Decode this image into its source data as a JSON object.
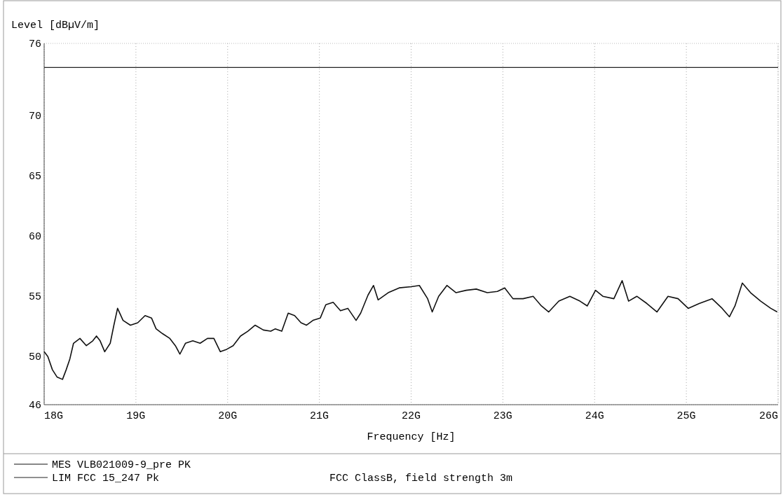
{
  "chart_data": {
    "type": "line",
    "ylabel": "Level [dBµV/m]",
    "xlabel": "Frequency [Hz]",
    "xlim": [
      18,
      26
    ],
    "xticks": [
      {
        "value": 18,
        "label": "18G"
      },
      {
        "value": 19,
        "label": "19G"
      },
      {
        "value": 20,
        "label": "20G"
      },
      {
        "value": 21,
        "label": "21G"
      },
      {
        "value": 22,
        "label": "22G"
      },
      {
        "value": 23,
        "label": "23G"
      },
      {
        "value": 24,
        "label": "24G"
      },
      {
        "value": 25,
        "label": "25G"
      },
      {
        "value": 26,
        "label": "26G"
      }
    ],
    "ylim": [
      46,
      76
    ],
    "yticks": [
      46,
      50,
      55,
      60,
      65,
      70,
      76
    ],
    "grid": "x",
    "legend": "bottom",
    "annotations": [
      "FCC ClassB, field strength 3m"
    ],
    "series": [
      {
        "name": "MES VLB021009-9_pre PK",
        "color": "#111111",
        "x": [
          18,
          18.04,
          18.09,
          18.14,
          18.2,
          18.24,
          18.28,
          18.32,
          18.39,
          18.46,
          18.53,
          18.57,
          18.61,
          18.66,
          18.72,
          18.76,
          18.8,
          18.86,
          18.94,
          19.02,
          19.1,
          19.17,
          19.22,
          19.29,
          19.37,
          19.43,
          19.48,
          19.54,
          19.62,
          19.7,
          19.78,
          19.85,
          19.92,
          19.99,
          20.06,
          20.14,
          20.22,
          20.3,
          20.39,
          20.47,
          20.52,
          20.59,
          20.66,
          20.73,
          20.8,
          20.86,
          20.93,
          21.01,
          21.07,
          21.15,
          21.23,
          21.31,
          21.4,
          21.45,
          21.53,
          21.59,
          21.64,
          21.75,
          21.87,
          22,
          22.09,
          22.18,
          22.23,
          22.3,
          22.39,
          22.49,
          22.6,
          22.71,
          22.83,
          22.94,
          23.02,
          23.11,
          23.22,
          23.33,
          23.42,
          23.5,
          23.61,
          23.73,
          23.84,
          23.92,
          24.01,
          24.09,
          24.21,
          24.3,
          24.37,
          24.46,
          24.57,
          24.68,
          24.8,
          24.91,
          25.02,
          25.14,
          25.28,
          25.39,
          25.47,
          25.53,
          25.61,
          25.7,
          25.81,
          25.92,
          25.99
        ],
        "values": [
          50.4,
          50,
          48.9,
          48.3,
          48.1,
          48.9,
          49.8,
          51.1,
          51.5,
          50.9,
          51.3,
          51.7,
          51.3,
          50.4,
          51.1,
          52.6,
          54,
          53,
          52.6,
          52.8,
          53.4,
          53.2,
          52.3,
          51.9,
          51.5,
          50.9,
          50.2,
          51.1,
          51.3,
          51.1,
          51.5,
          51.5,
          50.4,
          50.6,
          50.9,
          51.7,
          52.1,
          52.6,
          52.2,
          52.1,
          52.3,
          52.1,
          53.6,
          53.4,
          52.8,
          52.6,
          53,
          53.2,
          54.3,
          54.5,
          53.8,
          54,
          53,
          53.6,
          55.1,
          55.9,
          54.7,
          55.3,
          55.7,
          55.8,
          55.9,
          54.8,
          53.7,
          55,
          55.9,
          55.3,
          55.5,
          55.6,
          55.3,
          55.4,
          55.7,
          54.8,
          54.8,
          55,
          54.2,
          53.7,
          54.6,
          55,
          54.6,
          54.2,
          55.5,
          55,
          54.8,
          56.3,
          54.6,
          55,
          54.4,
          53.7,
          55,
          54.8,
          54,
          54.4,
          54.8,
          54,
          53.3,
          54.2,
          56.1,
          55.3,
          54.6,
          54,
          53.7
        ]
      },
      {
        "name": "LIM FCC 15_247 Pk",
        "color": "#222222",
        "x": [
          18,
          26
        ],
        "values": [
          74,
          74
        ]
      }
    ]
  }
}
